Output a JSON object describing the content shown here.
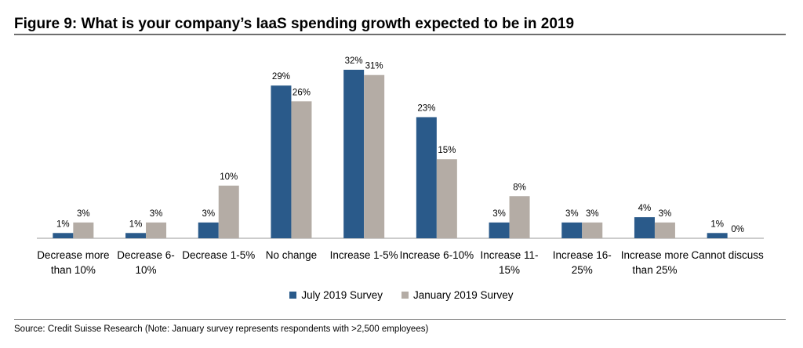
{
  "title": "Figure 9: What is your company’s IaaS spending growth expected to be in 2019",
  "source": "Source: Credit Suisse Research (Note: January survey represents respondents with >2,500 employees)",
  "colors": {
    "july": "#2a5a8a",
    "january": "#b4aca5"
  },
  "chart_data": {
    "type": "bar",
    "categories": [
      [
        "Decrease more",
        "than 10%"
      ],
      [
        "Decrease 6-",
        "10%"
      ],
      [
        "Decrease 1-5%"
      ],
      [
        "No change"
      ],
      [
        "Increase 1-5%"
      ],
      [
        "Increase 6-10%"
      ],
      [
        "Increase 11-",
        "15%"
      ],
      [
        "Increase 16-",
        "25%"
      ],
      [
        "Increase more",
        "than 25%"
      ],
      [
        "Cannot discuss"
      ]
    ],
    "series": [
      {
        "name": "July 2019 Survey",
        "values": [
          1,
          1,
          3,
          29,
          32,
          23,
          3,
          3,
          4,
          1
        ],
        "labels": [
          "1%",
          "1%",
          "3%",
          "29%",
          "32%",
          "23%",
          "3%",
          "3%",
          "4%",
          "1%"
        ]
      },
      {
        "name": "January 2019 Survey",
        "values": [
          3,
          3,
          10,
          26,
          31,
          15,
          8,
          3,
          3,
          0
        ],
        "labels": [
          "3%",
          "3%",
          "10%",
          "26%",
          "31%",
          "15%",
          "8%",
          "3%",
          "3%",
          "0%"
        ]
      }
    ],
    "ylim": [
      0,
      32
    ],
    "grid": false,
    "legend_position": "bottom"
  }
}
